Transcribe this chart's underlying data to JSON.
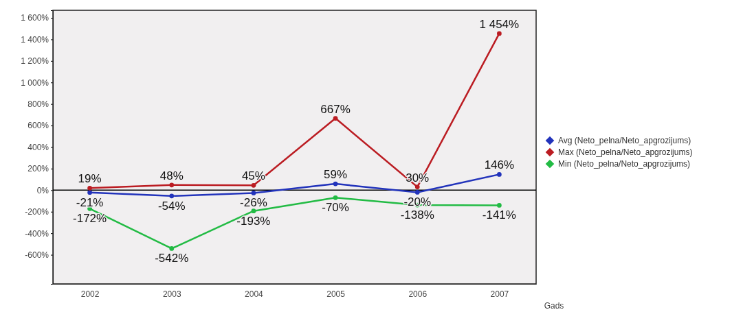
{
  "chart_data": {
    "type": "line",
    "xlabel": "Gads",
    "categories": [
      "2002",
      "2003",
      "2004",
      "2005",
      "2006",
      "2007"
    ],
    "series": [
      {
        "name": "Avg (Neto_pelna/Neto_apgrozijums)",
        "color": "#2233bb",
        "values": [
          -21,
          -54,
          -26,
          59,
          -20,
          146
        ],
        "value_labels": [
          "-21%",
          "-54%",
          "-26%",
          "59%",
          "-20%",
          "146%"
        ]
      },
      {
        "name": "Max (Neto_pelna/Neto_apgrozijums)",
        "color": "#bb1c22",
        "values": [
          19,
          48,
          45,
          667,
          30,
          1454
        ],
        "value_labels": [
          "19%",
          "48%",
          "45%",
          "667%",
          "30%",
          "1 454%"
        ]
      },
      {
        "name": "Min (Neto_pelna/Neto_apgrozijums)",
        "color": "#22bb44",
        "values": [
          -172,
          -542,
          -193,
          -70,
          -138,
          -141
        ],
        "value_labels": [
          "-172%",
          "-542%",
          "-193%",
          "-70%",
          "-138%",
          "-141%"
        ]
      }
    ],
    "ylim": [
      -870,
      1670
    ],
    "yticks": [
      {
        "value": -600,
        "label": "-600%"
      },
      {
        "value": -400,
        "label": "-400%"
      },
      {
        "value": -200,
        "label": "-200%"
      },
      {
        "value": 0,
        "label": "0%"
      },
      {
        "value": 200,
        "label": "200%"
      },
      {
        "value": 400,
        "label": "400%"
      },
      {
        "value": 600,
        "label": "600%"
      },
      {
        "value": 800,
        "label": "800%"
      },
      {
        "value": 1000,
        "label": "1 000%"
      },
      {
        "value": 1200,
        "label": "1 200%"
      },
      {
        "value": 1400,
        "label": "1 400%"
      },
      {
        "value": 1600,
        "label": "1 600%"
      }
    ],
    "ref_lines": [
      {
        "axis": "y",
        "value": 0,
        "color": "#000000"
      }
    ],
    "legend": "right",
    "marker": "circle",
    "line_style": "solid"
  }
}
